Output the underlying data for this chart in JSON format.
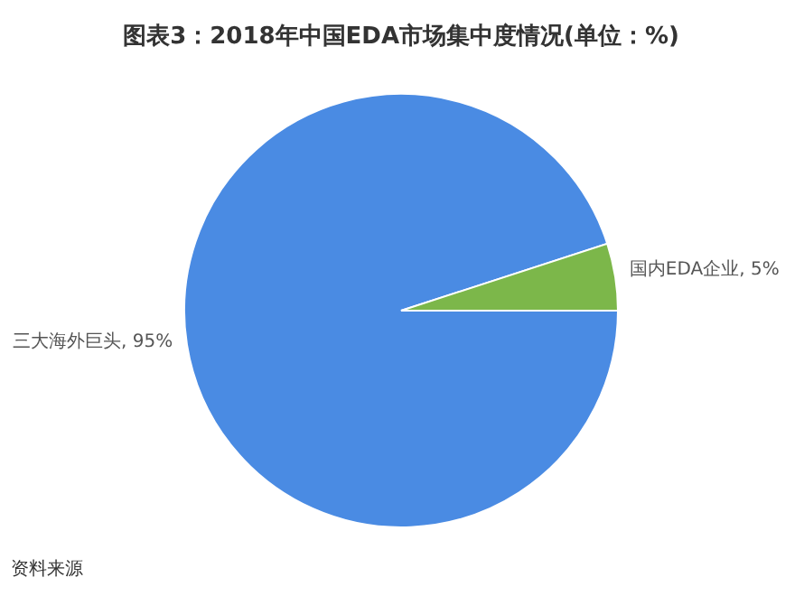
{
  "chart_data": {
    "type": "pie",
    "title": "图表3：2018年中国EDA市场集中度情况(单位：%)",
    "categories": [
      "三大海外巨头",
      "国内EDA企业"
    ],
    "values": [
      95,
      5
    ],
    "colors": [
      "#4a8be3",
      "#7cb74a"
    ],
    "value_labels": [
      "95%",
      "5%"
    ],
    "annotations": [
      "资料来源"
    ]
  }
}
